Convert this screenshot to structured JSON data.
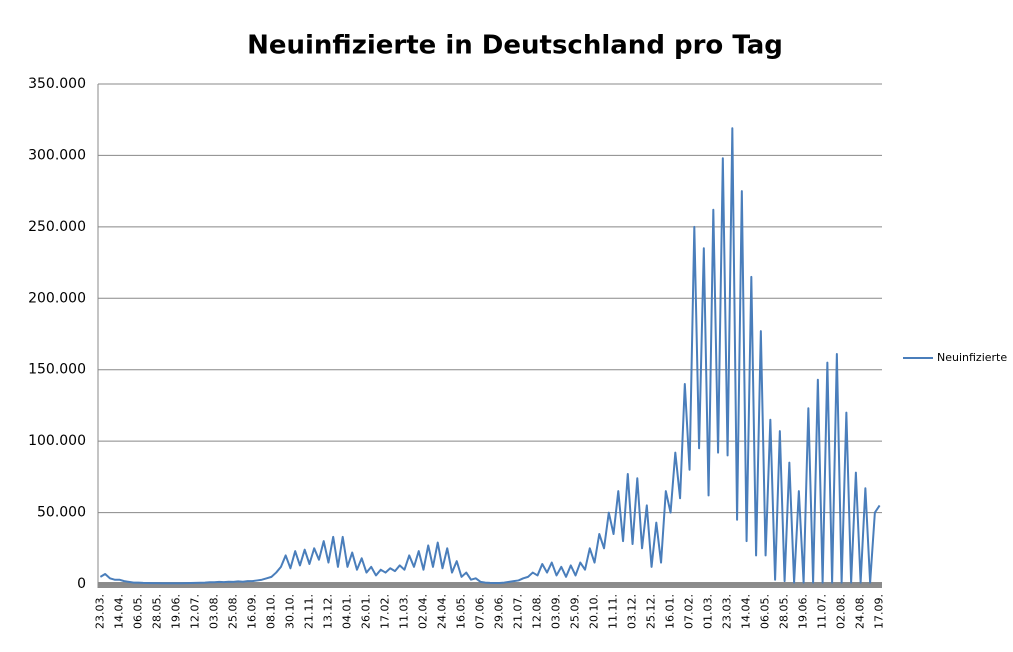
{
  "chart_data": {
    "type": "line",
    "title": "Neuinfizierte in Deutschland pro Tag",
    "categories": [
      "23.03.",
      null,
      null,
      null,
      "14.04.",
      null,
      null,
      null,
      "06.05.",
      null,
      null,
      null,
      "28.05.",
      null,
      null,
      null,
      "19.06.",
      null,
      null,
      null,
      "12.07.",
      null,
      null,
      null,
      "03.08.",
      null,
      null,
      null,
      "25.08.",
      null,
      null,
      null,
      "16.09.",
      null,
      null,
      null,
      "08.10.",
      null,
      null,
      null,
      "30.10.",
      null,
      null,
      null,
      "21.11.",
      null,
      null,
      null,
      "13.12.",
      null,
      null,
      null,
      "04.01.",
      null,
      null,
      null,
      "26.01.",
      null,
      null,
      null,
      "17.02.",
      null,
      null,
      null,
      "11.03.",
      null,
      null,
      null,
      "02.04.",
      null,
      null,
      null,
      "24.04.",
      null,
      null,
      null,
      "16.05.",
      null,
      null,
      null,
      "07.06.",
      null,
      null,
      null,
      "29.06.",
      null,
      null,
      null,
      "21.07.",
      null,
      null,
      null,
      "12.08.",
      null,
      null,
      null,
      "03.09.",
      null,
      null,
      null,
      "25.09.",
      null,
      null,
      null,
      "20.10.",
      null,
      null,
      null,
      "11.11.",
      null,
      null,
      null,
      "03.12.",
      null,
      null,
      null,
      "25.12.",
      null,
      null,
      null,
      "16.01.",
      null,
      null,
      null,
      "07.02.",
      null,
      null,
      null,
      "01.03.",
      null,
      null,
      null,
      "23.03.",
      null,
      null,
      null,
      "14.04.",
      null,
      null,
      null,
      "06.05.",
      null,
      null,
      null,
      "28.05.",
      null,
      null,
      null,
      "19.06.",
      null,
      null,
      null,
      "11.07.",
      null,
      null,
      null,
      "02.08.",
      null,
      null,
      null,
      "24.08.",
      null,
      null,
      null,
      "17.09."
    ],
    "series": [
      {
        "name": "Neuinfizierte",
        "color": "#4a7ebb",
        "values": [
          5000,
          7000,
          4000,
          3000,
          3000,
          2000,
          1500,
          1000,
          1000,
          800,
          700,
          600,
          600,
          500,
          500,
          500,
          500,
          500,
          600,
          700,
          800,
          900,
          1000,
          1200,
          1200,
          1500,
          1300,
          1600,
          1500,
          1800,
          1600,
          2000,
          2000,
          2500,
          3000,
          4000,
          5000,
          8000,
          12000,
          20000,
          11000,
          23000,
          13000,
          24000,
          14000,
          25000,
          17000,
          30000,
          15000,
          33000,
          12000,
          33000,
          12000,
          22000,
          10000,
          18000,
          8000,
          12000,
          6000,
          10000,
          8000,
          11000,
          9000,
          13000,
          10000,
          20000,
          12000,
          23000,
          10000,
          27000,
          12000,
          29000,
          11000,
          25000,
          8000,
          16000,
          5000,
          8000,
          3000,
          4000,
          1500,
          1000,
          800,
          700,
          700,
          1000,
          1500,
          2000,
          2500,
          4000,
          5000,
          8000,
          6000,
          14000,
          8000,
          15000,
          6000,
          12000,
          5000,
          13000,
          6000,
          15000,
          10000,
          25000,
          15000,
          35000,
          25000,
          50000,
          35000,
          65000,
          30000,
          77000,
          28000,
          74000,
          25000,
          55000,
          12000,
          43000,
          15000,
          65000,
          50000,
          92000,
          60000,
          140000,
          80000,
          250000,
          95000,
          235000,
          62000,
          262000,
          92000,
          298000,
          90000,
          319000,
          45000,
          275000,
          30000,
          215000,
          20000,
          177000,
          20000,
          115000,
          3000,
          107000,
          2000,
          85000,
          1000,
          65000,
          1000,
          123000,
          1000,
          143000,
          1000,
          155000,
          1000,
          161000,
          1000,
          120000,
          1000,
          78000,
          1000,
          67000,
          1000,
          50000,
          55000
        ]
      }
    ],
    "ylim": [
      0,
      350000
    ],
    "yticks": [
      {
        "value": 0,
        "label": "0"
      },
      {
        "value": 50000,
        "label": "50.000"
      },
      {
        "value": 100000,
        "label": "100.000"
      },
      {
        "value": 150000,
        "label": "150.000"
      },
      {
        "value": 200000,
        "label": "200.000"
      },
      {
        "value": 250000,
        "label": "250.000"
      },
      {
        "value": 300000,
        "label": "300.000"
      },
      {
        "value": 350000,
        "label": "350.000"
      }
    ],
    "grid": true,
    "legend": "right"
  }
}
